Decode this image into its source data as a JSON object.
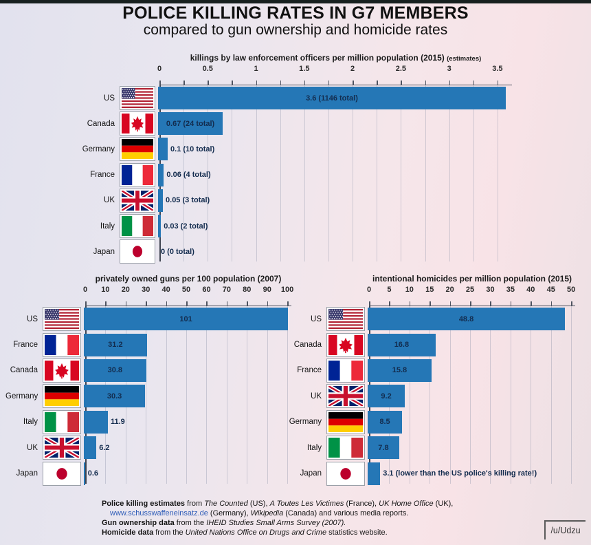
{
  "page": {
    "title": "POLICE KILLING RATES IN G7 MEMBERS",
    "subtitle": "compared to gun ownership and homicide rates",
    "watermark": "/u/Udzu"
  },
  "colors": {
    "bar": "#2577b6",
    "value_text": "#132c4e",
    "background_left": "#e2e2ee",
    "background_right": "#f8e3e7",
    "link": "#2e5cb8",
    "top_strip": "#17201f"
  },
  "chart_data": [
    {
      "type": "bar",
      "orientation": "horizontal",
      "title": "killings by law enforcement officers per million population (2015)",
      "title_suffix": "(estimates)",
      "xlim": [
        0,
        3.65
      ],
      "tick_values": [
        0,
        0.5,
        1,
        1.5,
        2,
        2.5,
        3,
        3.5
      ],
      "tick_labels": [
        "0",
        "0.5",
        "1",
        "1.5",
        "2",
        "2.5",
        "3",
        "3.5"
      ],
      "minor_tick_step": 0.25,
      "grid_step": 0.25,
      "grid": true,
      "categories": [
        "US",
        "Canada",
        "Germany",
        "France",
        "UK",
        "Italy",
        "Japan"
      ],
      "values": [
        3.6,
        0.67,
        0.1,
        0.06,
        0.05,
        0.03,
        0
      ],
      "rows": [
        {
          "country": "US",
          "flag": "us",
          "value": 3.6,
          "label": "3.6 (1146 total)"
        },
        {
          "country": "Canada",
          "flag": "ca",
          "value": 0.67,
          "label": "0.67 (24 total)"
        },
        {
          "country": "Germany",
          "flag": "de",
          "value": 0.1,
          "label": "0.1 (10 total)"
        },
        {
          "country": "France",
          "flag": "fr",
          "value": 0.06,
          "label": "0.06 (4 total)"
        },
        {
          "country": "UK",
          "flag": "uk",
          "value": 0.05,
          "label": "0.05 (3 total)"
        },
        {
          "country": "Italy",
          "flag": "it",
          "value": 0.03,
          "label": "0.03 (2 total)"
        },
        {
          "country": "Japan",
          "flag": "jp",
          "value": 0,
          "label": "0 (0 total)"
        }
      ]
    },
    {
      "type": "bar",
      "orientation": "horizontal",
      "title": "privately owned guns per 100 population (2007)",
      "title_suffix": "",
      "xlim": [
        0,
        102
      ],
      "tick_values": [
        0,
        10,
        20,
        30,
        40,
        50,
        60,
        70,
        80,
        90,
        100
      ],
      "tick_labels": [
        "0",
        "10",
        "20",
        "30",
        "40",
        "50",
        "60",
        "70",
        "80",
        "90",
        "100"
      ],
      "minor_tick_step": 0,
      "grid_step": 10,
      "grid": true,
      "categories": [
        "US",
        "France",
        "Canada",
        "Germany",
        "Italy",
        "UK",
        "Japan"
      ],
      "values": [
        101,
        31.2,
        30.8,
        30.3,
        11.9,
        6.2,
        0.6
      ],
      "rows": [
        {
          "country": "US",
          "flag": "us",
          "value": 101,
          "label": "101"
        },
        {
          "country": "France",
          "flag": "fr",
          "value": 31.2,
          "label": "31.2"
        },
        {
          "country": "Canada",
          "flag": "ca",
          "value": 30.8,
          "label": "30.8"
        },
        {
          "country": "Germany",
          "flag": "de",
          "value": 30.3,
          "label": "30.3"
        },
        {
          "country": "Italy",
          "flag": "it",
          "value": 11.9,
          "label": "11.9"
        },
        {
          "country": "UK",
          "flag": "uk",
          "value": 6.2,
          "label": "6.2"
        },
        {
          "country": "Japan",
          "flag": "jp",
          "value": 0.6,
          "label": "0.6"
        }
      ]
    },
    {
      "type": "bar",
      "orientation": "horizontal",
      "title": "intentional homicides per million population (2015)",
      "title_suffix": "",
      "xlim": [
        0,
        51
      ],
      "tick_values": [
        0,
        5,
        10,
        15,
        20,
        25,
        30,
        35,
        40,
        45,
        50
      ],
      "tick_labels": [
        "0",
        "5",
        "10",
        "15",
        "20",
        "25",
        "30",
        "35",
        "40",
        "45",
        "50"
      ],
      "minor_tick_step": 0,
      "grid_step": 5,
      "grid": true,
      "categories": [
        "US",
        "Canada",
        "France",
        "UK",
        "Germany",
        "Italy",
        "Japan"
      ],
      "values": [
        48.8,
        16.8,
        15.8,
        9.2,
        8.5,
        7.8,
        3.1
      ],
      "rows": [
        {
          "country": "US",
          "flag": "us",
          "value": 48.8,
          "label": "48.8"
        },
        {
          "country": "Canada",
          "flag": "ca",
          "value": 16.8,
          "label": "16.8"
        },
        {
          "country": "France",
          "flag": "fr",
          "value": 15.8,
          "label": "15.8"
        },
        {
          "country": "UK",
          "flag": "uk",
          "value": 9.2,
          "label": "9.2"
        },
        {
          "country": "Germany",
          "flag": "de",
          "value": 8.5,
          "label": "8.5"
        },
        {
          "country": "Italy",
          "flag": "it",
          "value": 7.8,
          "label": "7.8"
        },
        {
          "country": "Japan",
          "flag": "jp",
          "value": 3.1,
          "label": "3.1",
          "annotation": "(lower than the US police's killing rate!)"
        }
      ]
    }
  ],
  "footer": {
    "lines": [
      {
        "indent": false,
        "segs": [
          {
            "t": "Police killing estimates",
            "b": true
          },
          {
            "t": " from "
          },
          {
            "t": "The Counted",
            "i": true
          },
          {
            "t": " (US), "
          },
          {
            "t": "A Toutes Les Victimes",
            "i": true
          },
          {
            "t": " (France), "
          },
          {
            "t": "UK Home Office",
            "i": true
          },
          {
            "t": " (UK),"
          }
        ]
      },
      {
        "indent": true,
        "segs": [
          {
            "t": "www.schusswaffeneinsatz.de",
            "l": true
          },
          {
            "t": " (Germany), "
          },
          {
            "t": "Wikipedia",
            "i": true
          },
          {
            "t": " (Canada) and various media reports."
          }
        ]
      },
      {
        "indent": false,
        "segs": [
          {
            "t": "Gun ownership data",
            "b": true
          },
          {
            "t": " from the "
          },
          {
            "t": "IHEID Studies Small Arms Survey (2007).",
            "i": true
          }
        ]
      },
      {
        "indent": false,
        "segs": [
          {
            "t": "Homicide data",
            "b": true
          },
          {
            "t": " from the "
          },
          {
            "t": "United Nations Office on Drugs and Crime",
            "i": true
          },
          {
            "t": " statistics website."
          }
        ]
      }
    ]
  }
}
